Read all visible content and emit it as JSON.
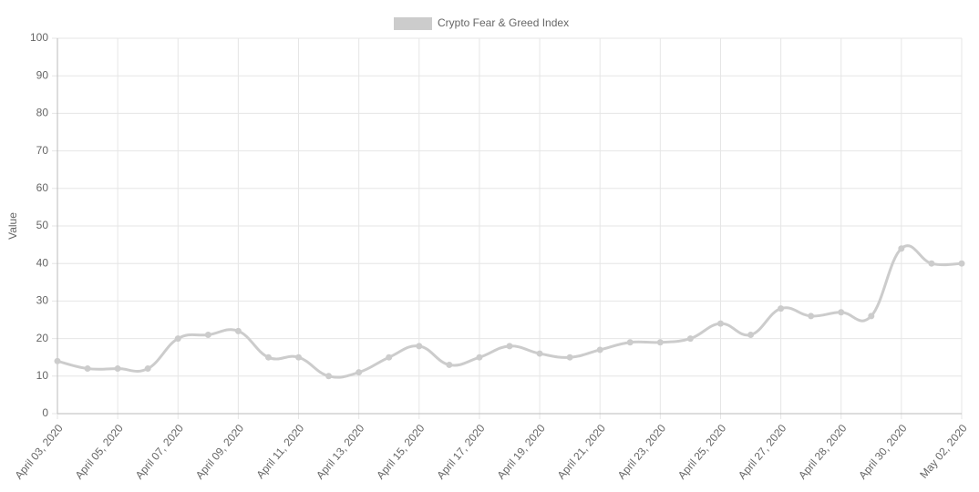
{
  "chart_data": {
    "type": "line",
    "y_label": "Value",
    "categories": [
      "April 03, 2020",
      null,
      "April 05, 2020",
      null,
      "April 07, 2020",
      null,
      "April 09, 2020",
      null,
      "April 11, 2020",
      null,
      "April 13, 2020",
      null,
      "April 15, 2020",
      null,
      "April 17, 2020",
      null,
      "April 19, 2020",
      null,
      "April 21, 2020",
      null,
      "April 23, 2020",
      null,
      "April 25, 2020",
      null,
      "April 27, 2020",
      null,
      "April 28, 2020",
      null,
      "April 30, 2020",
      null,
      "May 02, 2020"
    ],
    "series": [
      {
        "name": "Crypto Fear & Greed Index",
        "color": "#cccccc",
        "values": [
          14,
          12,
          12,
          12,
          20,
          21,
          22,
          15,
          15,
          10,
          11,
          15,
          18,
          13,
          15,
          18,
          16,
          15,
          17,
          19,
          19,
          20,
          24,
          21,
          28,
          26,
          27,
          26,
          44,
          40,
          40
        ]
      }
    ],
    "ylim": [
      0,
      100
    ],
    "yticks": [
      0,
      10,
      20,
      30,
      40,
      50,
      60,
      70,
      80,
      90,
      100
    ],
    "grid": true,
    "legend": "top"
  }
}
